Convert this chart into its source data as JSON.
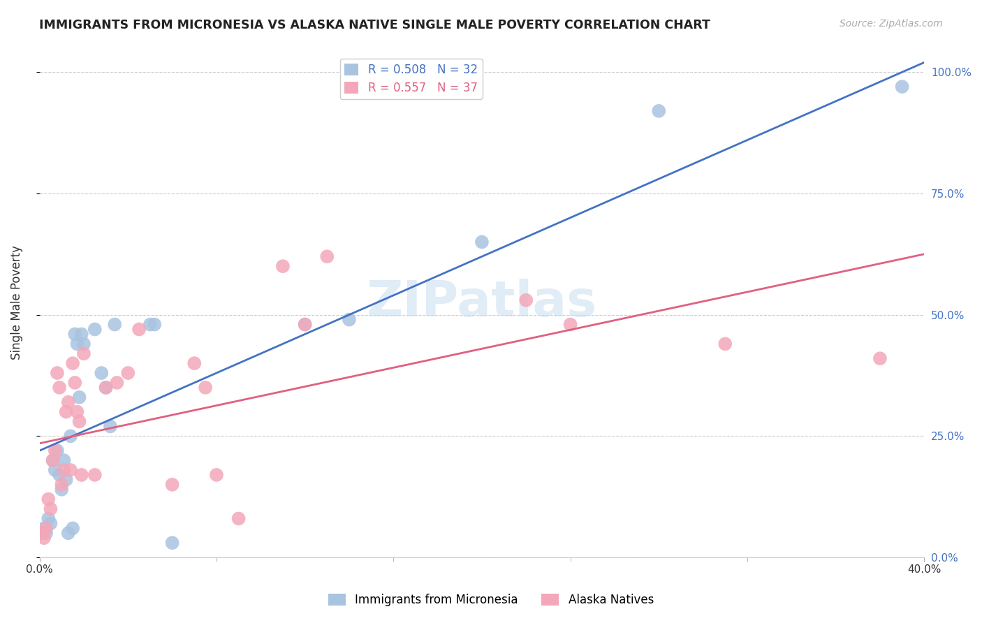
{
  "title": "IMMIGRANTS FROM MICRONESIA VS ALASKA NATIVE SINGLE MALE POVERTY CORRELATION CHART",
  "source": "Source: ZipAtlas.com",
  "ylabel": "Single Male Poverty",
  "x_min": 0.0,
  "x_max": 0.4,
  "y_min": 0.0,
  "y_max": 1.05,
  "blue_R": 0.508,
  "blue_N": 32,
  "pink_R": 0.557,
  "pink_N": 37,
  "legend_label_blue": "Immigrants from Micronesia",
  "legend_label_pink": "Alaska Natives",
  "watermark": "ZIPatlas",
  "blue_color": "#a8c4e0",
  "blue_line_color": "#4472c4",
  "pink_color": "#f4a7b9",
  "pink_line_color": "#e06080",
  "blue_scatter": [
    [
      0.002,
      0.06
    ],
    [
      0.003,
      0.05
    ],
    [
      0.004,
      0.08
    ],
    [
      0.005,
      0.07
    ],
    [
      0.006,
      0.2
    ],
    [
      0.007,
      0.18
    ],
    [
      0.008,
      0.22
    ],
    [
      0.009,
      0.17
    ],
    [
      0.01,
      0.14
    ],
    [
      0.011,
      0.2
    ],
    [
      0.012,
      0.16
    ],
    [
      0.013,
      0.05
    ],
    [
      0.014,
      0.25
    ],
    [
      0.015,
      0.06
    ],
    [
      0.016,
      0.46
    ],
    [
      0.017,
      0.44
    ],
    [
      0.018,
      0.33
    ],
    [
      0.019,
      0.46
    ],
    [
      0.02,
      0.44
    ],
    [
      0.025,
      0.47
    ],
    [
      0.028,
      0.38
    ],
    [
      0.03,
      0.35
    ],
    [
      0.032,
      0.27
    ],
    [
      0.034,
      0.48
    ],
    [
      0.05,
      0.48
    ],
    [
      0.052,
      0.48
    ],
    [
      0.06,
      0.03
    ],
    [
      0.12,
      0.48
    ],
    [
      0.14,
      0.49
    ],
    [
      0.2,
      0.65
    ],
    [
      0.28,
      0.92
    ],
    [
      0.39,
      0.97
    ]
  ],
  "pink_scatter": [
    [
      0.001,
      0.05
    ],
    [
      0.002,
      0.04
    ],
    [
      0.003,
      0.06
    ],
    [
      0.004,
      0.12
    ],
    [
      0.005,
      0.1
    ],
    [
      0.006,
      0.2
    ],
    [
      0.007,
      0.22
    ],
    [
      0.008,
      0.38
    ],
    [
      0.009,
      0.35
    ],
    [
      0.01,
      0.15
    ],
    [
      0.011,
      0.18
    ],
    [
      0.012,
      0.3
    ],
    [
      0.013,
      0.32
    ],
    [
      0.014,
      0.18
    ],
    [
      0.015,
      0.4
    ],
    [
      0.016,
      0.36
    ],
    [
      0.017,
      0.3
    ],
    [
      0.018,
      0.28
    ],
    [
      0.019,
      0.17
    ],
    [
      0.02,
      0.42
    ],
    [
      0.025,
      0.17
    ],
    [
      0.03,
      0.35
    ],
    [
      0.035,
      0.36
    ],
    [
      0.04,
      0.38
    ],
    [
      0.045,
      0.47
    ],
    [
      0.06,
      0.15
    ],
    [
      0.07,
      0.4
    ],
    [
      0.075,
      0.35
    ],
    [
      0.08,
      0.17
    ],
    [
      0.09,
      0.08
    ],
    [
      0.11,
      0.6
    ],
    [
      0.12,
      0.48
    ],
    [
      0.13,
      0.62
    ],
    [
      0.22,
      0.53
    ],
    [
      0.24,
      0.48
    ],
    [
      0.31,
      0.44
    ],
    [
      0.38,
      0.41
    ]
  ],
  "blue_line_x": [
    0.0,
    0.4
  ],
  "blue_line_y": [
    0.22,
    1.02
  ],
  "pink_line_x": [
    0.0,
    0.4
  ],
  "pink_line_y": [
    0.235,
    0.625
  ],
  "right_yticks": [
    0.0,
    0.25,
    0.5,
    0.75,
    1.0
  ],
  "right_yticklabels": [
    "0.0%",
    "25.0%",
    "50.0%",
    "75.0%",
    "100.0%"
  ],
  "background_color": "#ffffff",
  "grid_color": "#cccccc"
}
